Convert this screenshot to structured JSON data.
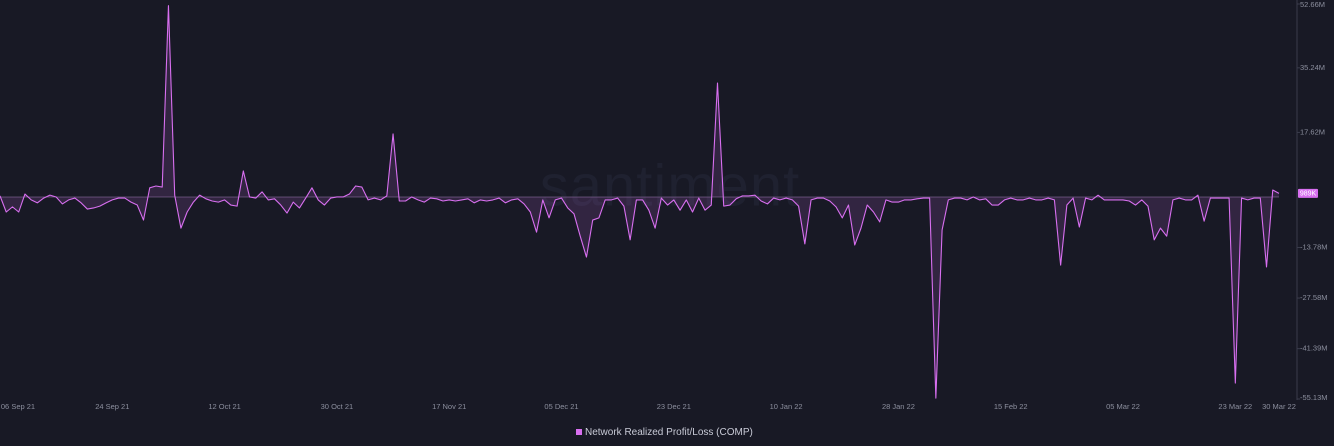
{
  "chart_data": {
    "type": "area-line",
    "watermark": "santiment",
    "color": "#d86ff0",
    "legend": "bottom",
    "last_value_label": "989K",
    "series": [
      {
        "name": "Network Realized Profit/Loss (COMP)",
        "color": "#d86ff0",
        "x": [
          "2021-09-06",
          "2021-09-07",
          "2021-09-08",
          "2021-09-09",
          "2021-09-10",
          "2021-09-11",
          "2021-09-12",
          "2021-09-13",
          "2021-09-14",
          "2021-09-15",
          "2021-09-16",
          "2021-09-17",
          "2021-09-18",
          "2021-09-19",
          "2021-09-20",
          "2021-09-21",
          "2021-09-22",
          "2021-09-23",
          "2021-09-24",
          "2021-09-25",
          "2021-09-26",
          "2021-09-27",
          "2021-09-28",
          "2021-09-29",
          "2021-09-30",
          "2021-10-01",
          "2021-10-02",
          "2021-10-03",
          "2021-10-04",
          "2021-10-05",
          "2021-10-06",
          "2021-10-07",
          "2021-10-08",
          "2021-10-09",
          "2021-10-10",
          "2021-10-11",
          "2021-10-12",
          "2021-10-13",
          "2021-10-14",
          "2021-10-15",
          "2021-10-16",
          "2021-10-17",
          "2021-10-18",
          "2021-10-19",
          "2021-10-20",
          "2021-10-21",
          "2021-10-22",
          "2021-10-23",
          "2021-10-24",
          "2021-10-25",
          "2021-10-26",
          "2021-10-27",
          "2021-10-28",
          "2021-10-29",
          "2021-10-30",
          "2021-10-31",
          "2021-11-01",
          "2021-11-02",
          "2021-11-03",
          "2021-11-04",
          "2021-11-05",
          "2021-11-06",
          "2021-11-07",
          "2021-11-08",
          "2021-11-09",
          "2021-11-10",
          "2021-11-11",
          "2021-11-12",
          "2021-11-13",
          "2021-11-14",
          "2021-11-15",
          "2021-11-16",
          "2021-11-17",
          "2021-11-18",
          "2021-11-19",
          "2021-11-20",
          "2021-11-21",
          "2021-11-22",
          "2021-11-23",
          "2021-11-24",
          "2021-11-25",
          "2021-11-26",
          "2021-11-27",
          "2021-11-28",
          "2021-11-29",
          "2021-11-30",
          "2021-12-01",
          "2021-12-02",
          "2021-12-03",
          "2021-12-04",
          "2021-12-05",
          "2021-12-06",
          "2021-12-07",
          "2021-12-08",
          "2021-12-09",
          "2021-12-10",
          "2021-12-11",
          "2021-12-12",
          "2021-12-13",
          "2021-12-14",
          "2021-12-15",
          "2021-12-16",
          "2021-12-17",
          "2021-12-18",
          "2021-12-19",
          "2021-12-20",
          "2021-12-21",
          "2021-12-22",
          "2021-12-23",
          "2021-12-24",
          "2021-12-25",
          "2021-12-26",
          "2021-12-27",
          "2021-12-28",
          "2021-12-29",
          "2021-12-30",
          "2021-12-31",
          "2022-01-01",
          "2022-01-02",
          "2022-01-03",
          "2022-01-04",
          "2022-01-05",
          "2022-01-06",
          "2022-01-07",
          "2022-01-08",
          "2022-01-09",
          "2022-01-10",
          "2022-01-11",
          "2022-01-12",
          "2022-01-13",
          "2022-01-14",
          "2022-01-15",
          "2022-01-16",
          "2022-01-17",
          "2022-01-18",
          "2022-01-19",
          "2022-01-20",
          "2022-01-21",
          "2022-01-22",
          "2022-01-23",
          "2022-01-24",
          "2022-01-25",
          "2022-01-26",
          "2022-01-27",
          "2022-01-28",
          "2022-01-29",
          "2022-01-30",
          "2022-01-31",
          "2022-02-01",
          "2022-02-02",
          "2022-02-03",
          "2022-02-04",
          "2022-02-05",
          "2022-02-06",
          "2022-02-07",
          "2022-02-08",
          "2022-02-09",
          "2022-02-10",
          "2022-02-11",
          "2022-02-12",
          "2022-02-13",
          "2022-02-14",
          "2022-02-15",
          "2022-02-16",
          "2022-02-17",
          "2022-02-18",
          "2022-02-19",
          "2022-02-20",
          "2022-02-21",
          "2022-02-22",
          "2022-02-23",
          "2022-02-24",
          "2022-02-25",
          "2022-02-26",
          "2022-02-27",
          "2022-02-28",
          "2022-03-01",
          "2022-03-02",
          "2022-03-03",
          "2022-03-04",
          "2022-03-05",
          "2022-03-06",
          "2022-03-07",
          "2022-03-08",
          "2022-03-09",
          "2022-03-10",
          "2022-03-11",
          "2022-03-12",
          "2022-03-13",
          "2022-03-14",
          "2022-03-15",
          "2022-03-16",
          "2022-03-17",
          "2022-03-18",
          "2022-03-19",
          "2022-03-20",
          "2022-03-21",
          "2022-03-22",
          "2022-03-23",
          "2022-03-24",
          "2022-03-25",
          "2022-03-26",
          "2022-03-27",
          "2022-03-28",
          "2022-03-29",
          "2022-03-30"
        ],
        "values": [
          0.3,
          -4.1,
          -2.7,
          -4.1,
          0.8,
          -0.8,
          -1.6,
          -0.3,
          0.5,
          0,
          -1.9,
          -0.8,
          -0.3,
          -1.6,
          -3.3,
          -3.0,
          -2.5,
          -1.6,
          -0.8,
          -0.3,
          -0.3,
          -1.4,
          -2.2,
          -6.3,
          2.5,
          3.0,
          2.7,
          52.2,
          0.5,
          -8.5,
          -4.1,
          -1.4,
          0.5,
          -0.5,
          -1.1,
          -1.4,
          -0.8,
          -2.2,
          -2.5,
          7.1,
          0,
          -0.3,
          1.4,
          -0.8,
          -0.5,
          -2.2,
          -4.4,
          -1.4,
          -3.0,
          -0.3,
          2.5,
          -0.8,
          -2.2,
          -0.3,
          0,
          0,
          0.8,
          3.0,
          2.7,
          -0.8,
          -0.3,
          -0.8,
          0.3,
          17.2,
          -1.1,
          -1.1,
          0,
          -0.8,
          -1.4,
          -0.3,
          -0.5,
          -1.1,
          -0.8,
          -1.1,
          -0.8,
          -0.5,
          -1.6,
          -0.8,
          -1.1,
          -0.8,
          -0.3,
          -1.6,
          -0.8,
          -0.5,
          -1.9,
          -4.1,
          -9.6,
          -0.8,
          -5.7,
          -0.8,
          -0.3,
          -3.0,
          -4.6,
          -10.7,
          -16.4,
          -6.3,
          -5.7,
          -0.8,
          -0.8,
          -0.3,
          -2.5,
          -11.7,
          -0.8,
          -0.8,
          -3.6,
          -8.5,
          -0.3,
          -2.2,
          -0.8,
          -3.6,
          -0.8,
          -4.1,
          -0.3,
          -3.6,
          -2.2,
          31.1,
          -2.5,
          -2.2,
          -0.5,
          0.3,
          0.3,
          0.5,
          -1.1,
          -1.9,
          -0.3,
          -0.8,
          -0.3,
          -0.8,
          -2.5,
          -12.8,
          -0.8,
          -0.3,
          -0.3,
          -1.1,
          -2.7,
          -5.7,
          -2.2,
          -13.1,
          -8.5,
          -2.2,
          -4.1,
          -6.8,
          -0.8,
          -1.4,
          -1.4,
          -0.8,
          -0.8,
          -0.5,
          -0.3,
          -0.3,
          -54.9,
          -9.0,
          -0.8,
          -0.3,
          -0.3,
          -0.8,
          0,
          -0.8,
          -0.5,
          -2.2,
          -2.2,
          -0.8,
          -0.3,
          -0.8,
          -0.8,
          -0.3,
          -0.8,
          -0.8,
          -0.3,
          -0.8,
          -18.6,
          -2.2,
          -0.3,
          -8.2,
          -0.3,
          -0.8,
          0.5,
          -0.8,
          -0.8,
          -0.8,
          -0.8,
          -1.1,
          -2.2,
          -0.8,
          -2.5,
          -11.7,
          -8.5,
          -10.7,
          -0.8,
          -0.3,
          -0.8,
          -0.8,
          0.5,
          -6.6,
          -0.3,
          -0.3,
          -0.3,
          -0.3,
          -50.8,
          -0.3,
          -0.8,
          -0.3,
          -0.3,
          -19.1,
          1.9,
          0.989
        ]
      }
    ],
    "xlim": [
      "2021-09-06",
      "2022-03-30"
    ],
    "xticks": [
      {
        "value": "2021-09-06",
        "label": "06 Sep 21"
      },
      {
        "value": "2021-09-24",
        "label": "24 Sep 21"
      },
      {
        "value": "2021-10-12",
        "label": "12 Oct 21"
      },
      {
        "value": "2021-10-30",
        "label": "30 Oct 21"
      },
      {
        "value": "2021-11-17",
        "label": "17 Nov 21"
      },
      {
        "value": "2021-12-05",
        "label": "05 Dec 21"
      },
      {
        "value": "2021-12-23",
        "label": "23 Dec 21"
      },
      {
        "value": "2022-01-10",
        "label": "10 Jan 22"
      },
      {
        "value": "2022-01-28",
        "label": "28 Jan 22"
      },
      {
        "value": "2022-02-15",
        "label": "15 Feb 22"
      },
      {
        "value": "2022-03-05",
        "label": "05 Mar 22"
      },
      {
        "value": "2022-03-23",
        "label": "23 Mar 22"
      },
      {
        "value": "2022-03-30",
        "label": "30 Mar 22"
      }
    ],
    "ylim": [
      -55.13,
      52.66
    ],
    "yticks": [
      {
        "value": 52.66,
        "label": "52.66M"
      },
      {
        "value": 35.24,
        "label": "35.24M"
      },
      {
        "value": 17.62,
        "label": "17.62M"
      },
      {
        "value": -13.78,
        "label": "-13.78M"
      },
      {
        "value": -27.58,
        "label": "-27.58M"
      },
      {
        "value": -41.39,
        "label": "-41.39M"
      },
      {
        "value": -55.13,
        "label": "-55.13M"
      }
    ]
  }
}
